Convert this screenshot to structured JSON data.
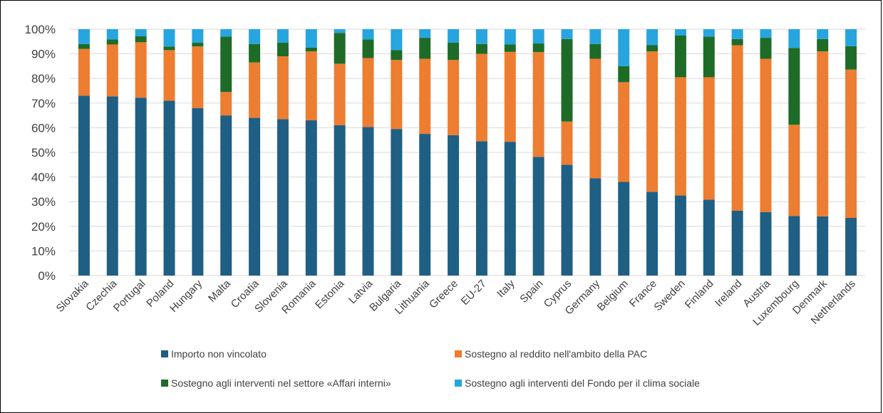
{
  "chart_data": {
    "type": "bar",
    "stacked": true,
    "ylim": [
      0,
      100
    ],
    "y_ticks": [
      "0%",
      "10%",
      "20%",
      "30%",
      "40%",
      "50%",
      "60%",
      "70%",
      "80%",
      "90%",
      "100%"
    ],
    "grid": true,
    "legend_position": "bottom",
    "categories": [
      "Slovakia",
      "Czechia",
      "Portugal",
      "Poland",
      "Hungary",
      "Malta",
      "Croatia",
      "Slovenia",
      "Romania",
      "Estonia",
      "Latvia",
      "Bulgaria",
      "Lithuania",
      "Greece",
      "EU-27",
      "Italy",
      "Spain",
      "Cyprus",
      "Germany",
      "Belgium",
      "France",
      "Sweden",
      "Finland",
      "Ireland",
      "Austria",
      "Luxembourg",
      "Denmark",
      "Netherlands"
    ],
    "series": [
      {
        "name": "Importo non vincolato",
        "color": "#1F5F84",
        "values": [
          73,
          72.7,
          72.2,
          71,
          68,
          65,
          64,
          63.5,
          63,
          61,
          60.3,
          59.5,
          57.5,
          57,
          54.5,
          54.3,
          48.2,
          45,
          39.5,
          38,
          34,
          32.5,
          30.8,
          26.3,
          25.8,
          24.2,
          24,
          23.4
        ]
      },
      {
        "name": "Sostegno al reddito nell'ambito della PAC",
        "color": "#ED7D31",
        "values": [
          19,
          21.1,
          22.5,
          20.5,
          25,
          9.5,
          22.5,
          25.5,
          28,
          25,
          28,
          28,
          30.5,
          30.5,
          35.5,
          36.5,
          42.5,
          17.5,
          48.5,
          40.5,
          57,
          48,
          49.7,
          67.2,
          62.2,
          37,
          67,
          60.2
        ]
      },
      {
        "name": "Sostegno agli interventi nel settore «Affari interni»",
        "color": "#1E6B28",
        "values": [
          2,
          2,
          2.5,
          1.5,
          1.5,
          22.5,
          7.5,
          5.5,
          1.5,
          12.5,
          7.5,
          4,
          8.5,
          7,
          4,
          3,
          3.5,
          33.5,
          6,
          6.5,
          2.5,
          17,
          16.5,
          2.5,
          8.5,
          31.2,
          5,
          9.5
        ]
      },
      {
        "name": "Sostegno agli interventi del Fondo per il clima sociale",
        "color": "#27A5DE",
        "values": [
          6,
          4.2,
          2.8,
          7,
          5.5,
          3,
          6,
          5.5,
          7.5,
          1.5,
          4.2,
          8.5,
          3.5,
          5.5,
          6,
          6.2,
          5.8,
          4,
          6,
          15,
          6.5,
          2.5,
          3,
          4,
          3.5,
          7.6,
          4,
          6.9
        ]
      }
    ]
  }
}
